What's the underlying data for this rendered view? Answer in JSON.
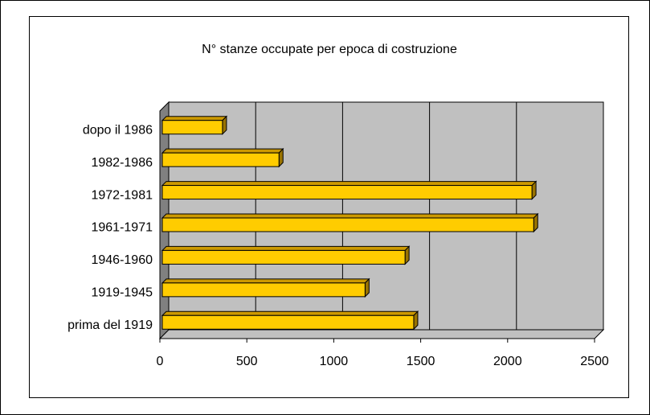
{
  "chart_data": {
    "type": "bar",
    "orientation": "horizontal",
    "title": "N° stanze occupate per epoca di costruzione",
    "categories": [
      "prima del 1919",
      "1919-1945",
      "1946-1960",
      "1961-1971",
      "1972-1981",
      "1982-1986",
      "dopo il 1986"
    ],
    "values": [
      1460,
      1180,
      1410,
      2150,
      2140,
      685,
      360
    ],
    "color": "#ffcc00",
    "xlim": [
      0,
      2500
    ],
    "xticks": [
      0,
      500,
      1000,
      1500,
      2000,
      2500
    ],
    "grid": true
  }
}
